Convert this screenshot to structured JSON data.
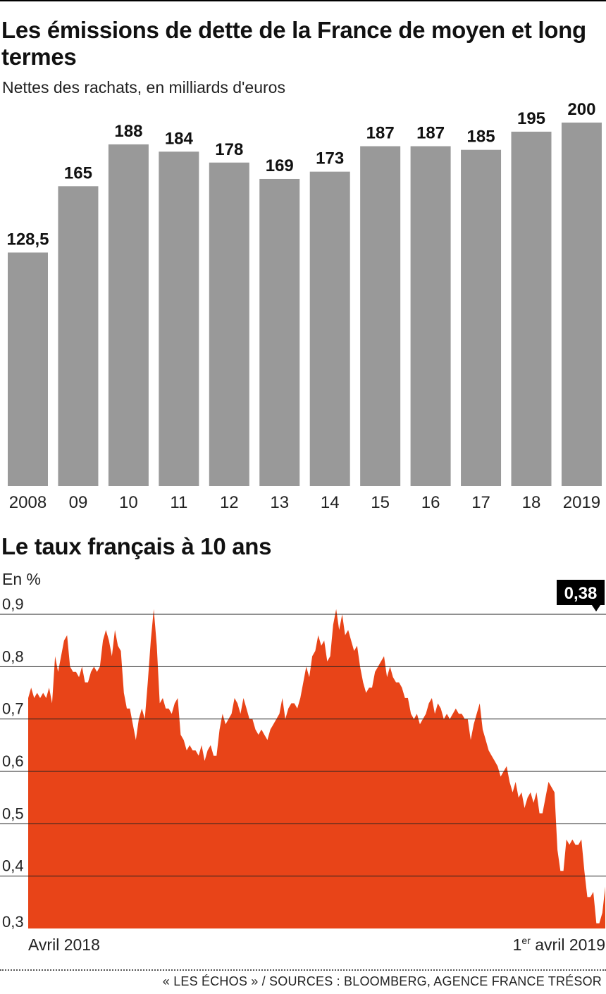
{
  "source": "« LES ÉCHOS » / SOURCES : BLOOMBERG, AGENCE FRANCE TRÉSOR",
  "colors": {
    "bars": "#999999",
    "area": "#e84418",
    "text": "#111111",
    "grid": "#222222",
    "callout": "#000000"
  },
  "chart_data": [
    {
      "type": "bar",
      "title": "Les émissions de dette de la France de moyen et long termes",
      "subtitle": "Nettes des rachats, en milliards d'euros",
      "categories": [
        "2008",
        "09",
        "10",
        "11",
        "12",
        "13",
        "14",
        "15",
        "16",
        "17",
        "18",
        "2019"
      ],
      "values": [
        128.5,
        165,
        188,
        184,
        178,
        169,
        173,
        187,
        187,
        185,
        195,
        200
      ],
      "data_labels": [
        "128,5",
        "165",
        "188",
        "184",
        "178",
        "169",
        "173",
        "187",
        "187",
        "185",
        "195",
        "200"
      ],
      "ylim": [
        0,
        200
      ],
      "grid": false,
      "legend": "none"
    },
    {
      "type": "area",
      "title": "Le taux français à 10 ans",
      "ylabel": "En %",
      "ylim": [
        0.3,
        0.9
      ],
      "yticks": [
        "0,9",
        "0,8",
        "0,7",
        "0,6",
        "0,5",
        "0,4",
        "0,3"
      ],
      "ytick_values": [
        0.9,
        0.8,
        0.7,
        0.6,
        0.5,
        0.4,
        0.3
      ],
      "x_start_label": "Avril 2018",
      "x_end_label_sup": "1",
      "x_end_label_sup_text": "er",
      "x_end_label_rest": " avril 2019",
      "last_value_label": "0,38",
      "last_value": 0.38,
      "grid": true,
      "values": [
        0.74,
        0.76,
        0.74,
        0.75,
        0.74,
        0.75,
        0.74,
        0.76,
        0.73,
        0.82,
        0.79,
        0.82,
        0.85,
        0.86,
        0.8,
        0.79,
        0.79,
        0.78,
        0.8,
        0.77,
        0.77,
        0.79,
        0.8,
        0.79,
        0.8,
        0.85,
        0.87,
        0.85,
        0.82,
        0.87,
        0.84,
        0.83,
        0.75,
        0.72,
        0.72,
        0.69,
        0.66,
        0.7,
        0.72,
        0.7,
        0.77,
        0.85,
        0.91,
        0.84,
        0.73,
        0.74,
        0.72,
        0.72,
        0.71,
        0.73,
        0.74,
        0.67,
        0.66,
        0.64,
        0.65,
        0.64,
        0.64,
        0.63,
        0.65,
        0.62,
        0.64,
        0.65,
        0.63,
        0.63,
        0.68,
        0.71,
        0.69,
        0.7,
        0.71,
        0.74,
        0.73,
        0.71,
        0.74,
        0.72,
        0.7,
        0.7,
        0.68,
        0.67,
        0.68,
        0.67,
        0.66,
        0.68,
        0.69,
        0.7,
        0.71,
        0.74,
        0.7,
        0.72,
        0.73,
        0.73,
        0.72,
        0.74,
        0.77,
        0.8,
        0.78,
        0.82,
        0.83,
        0.86,
        0.84,
        0.85,
        0.81,
        0.82,
        0.88,
        0.91,
        0.87,
        0.9,
        0.86,
        0.87,
        0.85,
        0.83,
        0.84,
        0.8,
        0.77,
        0.75,
        0.76,
        0.76,
        0.79,
        0.8,
        0.81,
        0.82,
        0.78,
        0.8,
        0.78,
        0.77,
        0.77,
        0.76,
        0.74,
        0.74,
        0.71,
        0.7,
        0.71,
        0.69,
        0.7,
        0.71,
        0.73,
        0.74,
        0.71,
        0.73,
        0.72,
        0.7,
        0.71,
        0.7,
        0.71,
        0.72,
        0.71,
        0.71,
        0.7,
        0.7,
        0.66,
        0.69,
        0.71,
        0.73,
        0.68,
        0.66,
        0.64,
        0.63,
        0.62,
        0.61,
        0.59,
        0.6,
        0.61,
        0.58,
        0.56,
        0.58,
        0.55,
        0.56,
        0.53,
        0.55,
        0.56,
        0.54,
        0.56,
        0.52,
        0.52,
        0.55,
        0.58,
        0.57,
        0.56,
        0.45,
        0.41,
        0.41,
        0.47,
        0.46,
        0.47,
        0.46,
        0.46,
        0.47,
        0.41,
        0.36,
        0.36,
        0.37,
        0.31,
        0.31,
        0.33,
        0.38
      ]
    }
  ]
}
